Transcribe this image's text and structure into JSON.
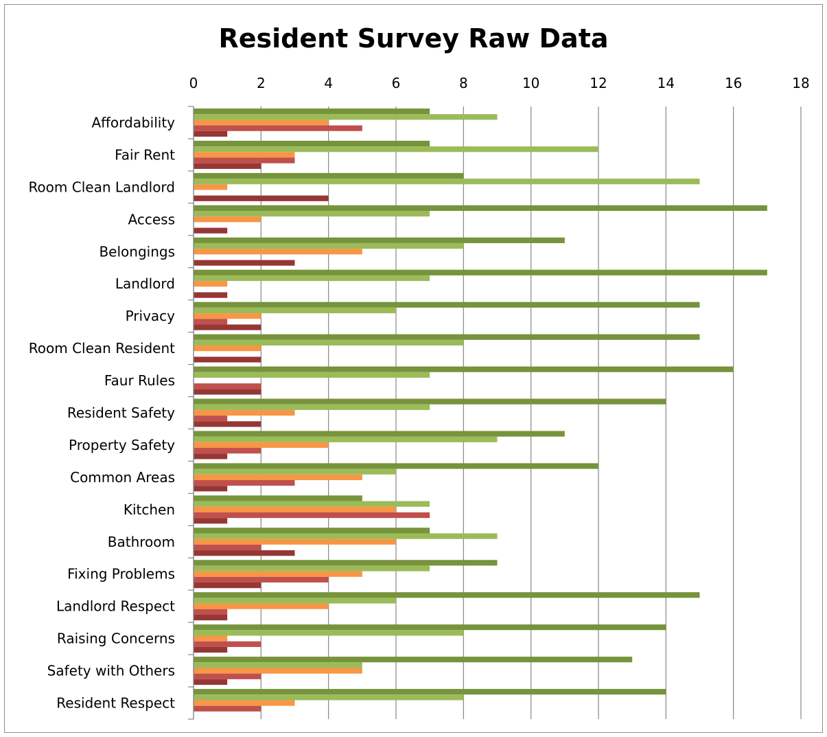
{
  "chart_data": {
    "type": "bar",
    "orientation": "horizontal",
    "title": "Resident Survey Raw Data",
    "xlabel": "",
    "ylabel": "",
    "xlim": [
      0,
      18
    ],
    "x_ticks": [
      "0",
      "2",
      "4",
      "6",
      "8",
      "10",
      "12",
      "14",
      "16",
      "18"
    ],
    "x_axis_position": "top",
    "grid": true,
    "legend": "none",
    "categories": [
      "Affordability",
      "Fair Rent",
      "Room Clean Landlord",
      "Access",
      "Belongings",
      "Landlord",
      "Privacy",
      "Room Clean Resident",
      "Faur Rules",
      "Resident Safety",
      "Property Safety",
      "Common Areas",
      "Kitchen",
      "Bathroom",
      "Fixing Problems",
      "Landlord Respect",
      "Raising Concerns",
      "Safety with Others",
      "Resident Respect"
    ],
    "series": [
      {
        "color": "#77933c",
        "values": [
          7,
          7,
          8,
          17,
          11,
          17,
          15,
          15,
          16,
          14,
          11,
          12,
          5,
          7,
          9,
          15,
          14,
          13,
          14
        ]
      },
      {
        "color": "#9bbb59",
        "values": [
          9,
          12,
          15,
          7,
          8,
          7,
          6,
          8,
          7,
          7,
          9,
          6,
          7,
          9,
          7,
          6,
          8,
          5,
          8
        ]
      },
      {
        "color": "#f79646",
        "values": [
          4,
          3,
          1,
          2,
          5,
          1,
          2,
          2,
          0,
          3,
          4,
          5,
          6,
          6,
          5,
          4,
          1,
          5,
          3
        ]
      },
      {
        "color": "#c0504d",
        "values": [
          5,
          3,
          0,
          0,
          0,
          0,
          1,
          0,
          2,
          1,
          2,
          3,
          7,
          2,
          4,
          1,
          2,
          2,
          2
        ]
      },
      {
        "color": "#953735",
        "values": [
          1,
          2,
          4,
          1,
          3,
          1,
          2,
          2,
          2,
          2,
          1,
          1,
          1,
          3,
          2,
          1,
          1,
          1,
          0
        ]
      }
    ]
  }
}
